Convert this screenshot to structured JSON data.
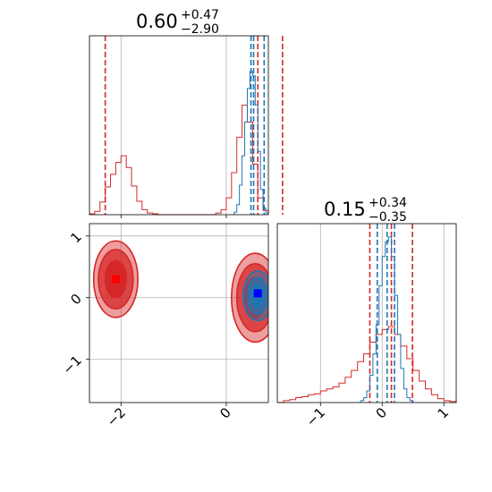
{
  "chart_data": {
    "type": "corner",
    "parameters": [
      {
        "title_value": "0.60",
        "title_plus": "+0.47",
        "title_minus": "−2.90",
        "axis_range": [
          -2.6,
          0.8
        ],
        "tick_values": [
          -2,
          0
        ],
        "tick_labels": [
          "−2",
          "0"
        ]
      },
      {
        "title_value": "0.15",
        "title_plus": "+0.34",
        "title_minus": "−0.35",
        "axis_range": [
          -1.7,
          1.2
        ],
        "tick_values": [
          -1,
          0,
          1
        ],
        "tick_labels": [
          "−1",
          "0",
          "1"
        ]
      }
    ],
    "grid": true,
    "series": [
      {
        "color": "#d62728",
        "hist_param0": {
          "bin_edges": [
            -2.6,
            -2.5,
            -2.4,
            -2.3,
            -2.2,
            -2.1,
            -2.0,
            -1.9,
            -1.8,
            -1.7,
            -1.6,
            -1.5,
            -1.4,
            -1.3,
            -1.2,
            -1.1,
            -1.0,
            -0.9,
            -0.8,
            -0.7,
            -0.6,
            -0.5,
            -0.4,
            -0.3,
            -0.2,
            -0.1,
            0.0,
            0.1,
            0.2,
            0.3,
            0.4,
            0.5,
            0.6,
            0.7,
            0.8
          ],
          "counts": [
            1,
            4,
            15,
            33,
            48,
            62,
            70,
            56,
            34,
            16,
            6,
            2,
            1,
            0,
            0,
            0,
            0,
            0,
            0,
            0,
            0,
            0,
            0,
            0,
            2,
            6,
            20,
            50,
            92,
            130,
            110,
            60,
            20,
            5
          ]
        },
        "hist_param1": {
          "bin_edges": [
            -1.7,
            -1.6,
            -1.5,
            -1.4,
            -1.3,
            -1.2,
            -1.1,
            -1.0,
            -0.9,
            -0.8,
            -0.7,
            -0.6,
            -0.5,
            -0.4,
            -0.3,
            -0.2,
            -0.1,
            0.0,
            0.1,
            0.2,
            0.3,
            0.4,
            0.5,
            0.6,
            0.7,
            0.8,
            0.9,
            1.0,
            1.1,
            1.2
          ],
          "counts": [
            0,
            2,
            3,
            5,
            6,
            8,
            9,
            12,
            14,
            16,
            20,
            26,
            33,
            42,
            50,
            62,
            70,
            75,
            78,
            70,
            58,
            45,
            33,
            22,
            14,
            8,
            4,
            2,
            1
          ]
        },
        "quantile_lines_param0": [
          -2.3,
          0.6,
          1.07
        ],
        "quantile_lines_param1": [
          -0.2,
          0.15,
          0.49
        ],
        "truth_marker": {
          "shape": "square",
          "x": -2.1,
          "y": 0.3
        },
        "contours": [
          {
            "centers": [
              [
                -2.1,
                0.3
              ],
              [
                0.55,
                0.0
              ]
            ],
            "levels": [
              {
                "rx": [
                  0.42,
                  0.45
                ],
                "ry": [
                  0.62,
                  0.72
                ],
                "fill_opacity": 0.45
              },
              {
                "rx": [
                  0.33,
                  0.35
                ],
                "ry": [
                  0.48,
                  0.55
                ],
                "fill_opacity": 0.75
              },
              {
                "rx": [
                  0.2,
                  0.2
                ],
                "ry": [
                  0.3,
                  0.33
                ],
                "fill_opacity": 1.0
              }
            ]
          }
        ]
      },
      {
        "color": "#1f77b4",
        "hist_param0": {
          "bin_edges": [
            0.15,
            0.2,
            0.25,
            0.3,
            0.35,
            0.4,
            0.45,
            0.5,
            0.55,
            0.6,
            0.65,
            0.7,
            0.75,
            0.8
          ],
          "counts": [
            3,
            12,
            35,
            70,
            110,
            150,
            170,
            165,
            130,
            75,
            30,
            8,
            2
          ]
        },
        "hist_param1": {
          "bin_edges": [
            -0.35,
            -0.3,
            -0.25,
            -0.2,
            -0.15,
            -0.1,
            -0.05,
            0.0,
            0.05,
            0.1,
            0.15,
            0.2,
            0.25,
            0.3,
            0.35,
            0.4,
            0.45,
            0.5
          ],
          "counts": [
            2,
            5,
            12,
            28,
            50,
            80,
            120,
            150,
            165,
            170,
            150,
            110,
            70,
            35,
            14,
            5,
            2
          ]
        },
        "quantile_lines_param0": [
          0.47,
          0.52,
          0.72
        ],
        "quantile_lines_param1": [
          -0.08,
          0.08,
          0.2
        ],
        "truth_marker": {
          "shape": "square",
          "x": 0.6,
          "y": 0.07
        },
        "contours": [
          {
            "centers": [
              [
                0.6,
                0.03
              ]
            ],
            "levels": [
              {
                "rx": [
                  0.28
                ],
                "ry": [
                  0.4
                ],
                "fill_opacity": 0.4
              },
              {
                "rx": [
                  0.2
                ],
                "ry": [
                  0.3
                ],
                "fill_opacity": 0.7
              },
              {
                "rx": [
                  0.12
                ],
                "ry": [
                  0.18
                ],
                "fill_opacity": 0.95
              }
            ]
          }
        ]
      }
    ]
  }
}
